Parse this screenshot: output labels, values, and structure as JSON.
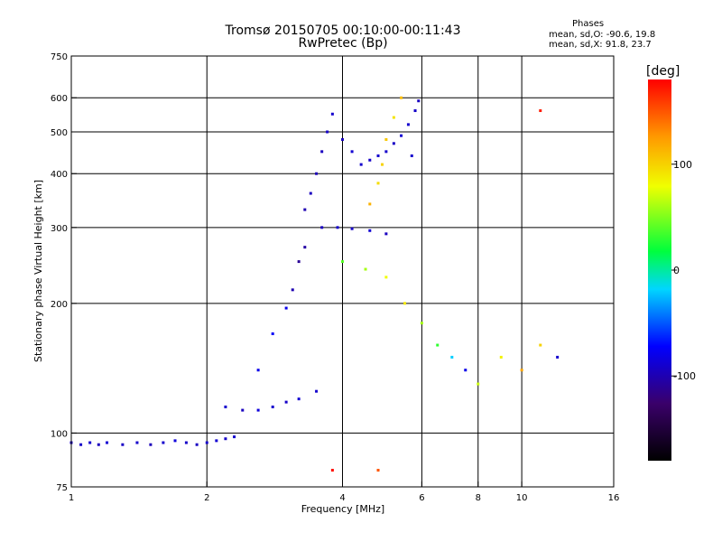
{
  "header": {
    "title_line1": "Tromsø 20150705 00:10:00-00:11:43",
    "title_line2": "RwPretec (Bp)"
  },
  "stats": {
    "heading": "Phases",
    "line_o": "mean, sd,O: -90.6, 19.8",
    "line_x": "mean, sd,X:  91.8, 23.7"
  },
  "colorbar": {
    "label": "[deg]",
    "ticks": [
      "100",
      "0",
      "-100"
    ],
    "tick_values": [
      100,
      0,
      -100
    ],
    "range": [
      -180,
      180
    ]
  },
  "chart_data": {
    "type": "scatter",
    "xlabel": "Frequency [MHz]",
    "ylabel": "Stationary phase Virtual Height [km]",
    "xscale": "log",
    "yscale": "log",
    "xlim": [
      1,
      16
    ],
    "ylim": [
      75,
      750
    ],
    "xticks": [
      1,
      2,
      4,
      6,
      8,
      10,
      16
    ],
    "xtick_labels": [
      "1",
      "2",
      "4",
      "6",
      "8",
      "10",
      "16"
    ],
    "yticks": [
      75,
      100,
      200,
      300,
      400,
      500,
      600,
      750
    ],
    "ytick_labels": [
      "75",
      "100",
      "200",
      "300",
      "400",
      "500",
      "600",
      "750"
    ],
    "grid_x": [
      2,
      4,
      6,
      8,
      10
    ],
    "grid_y": [
      100,
      200,
      300,
      400,
      500,
      600
    ],
    "color_meaning": "phase [deg]",
    "series": [
      {
        "points": [
          [
            1.0,
            95,
            -95
          ],
          [
            1.05,
            94,
            -92
          ],
          [
            1.1,
            95,
            -90
          ],
          [
            1.15,
            94,
            -96
          ],
          [
            1.2,
            95,
            -88
          ],
          [
            1.3,
            94,
            -93
          ],
          [
            1.4,
            95,
            -91
          ],
          [
            1.5,
            94,
            -97
          ],
          [
            1.6,
            95,
            -90
          ],
          [
            1.7,
            96,
            -85
          ],
          [
            1.8,
            95,
            -92
          ],
          [
            1.9,
            94,
            -94
          ],
          [
            2.0,
            95,
            -90
          ],
          [
            2.1,
            96,
            -88
          ],
          [
            2.2,
            97,
            -92
          ],
          [
            2.3,
            98,
            -90
          ],
          [
            2.2,
            115,
            -90
          ],
          [
            2.4,
            113,
            -95
          ],
          [
            2.6,
            113,
            -85
          ],
          [
            2.8,
            115,
            -90
          ],
          [
            3.0,
            118,
            -92
          ],
          [
            3.2,
            120,
            -88
          ],
          [
            3.5,
            125,
            -90
          ],
          [
            2.6,
            140,
            -80
          ],
          [
            2.8,
            170,
            -75
          ],
          [
            3.0,
            195,
            -80
          ],
          [
            3.1,
            215,
            -100
          ],
          [
            3.2,
            250,
            -110
          ],
          [
            3.3,
            270,
            -105
          ],
          [
            3.3,
            330,
            -100
          ],
          [
            3.4,
            360,
            -95
          ],
          [
            3.5,
            400,
            -98
          ],
          [
            3.6,
            450,
            -95
          ],
          [
            3.7,
            500,
            -92
          ],
          [
            3.8,
            550,
            -90
          ],
          [
            4.0,
            480,
            -95
          ],
          [
            4.2,
            450,
            -88
          ],
          [
            4.4,
            420,
            -90
          ],
          [
            4.6,
            430,
            -92
          ],
          [
            4.8,
            440,
            -90
          ],
          [
            5.0,
            450,
            -91
          ],
          [
            5.2,
            470,
            -93
          ],
          [
            5.4,
            490,
            -88
          ],
          [
            5.6,
            520,
            -90
          ],
          [
            5.8,
            560,
            -92
          ],
          [
            5.9,
            590,
            -95
          ],
          [
            5.7,
            440,
            -90
          ],
          [
            3.6,
            300,
            -95
          ],
          [
            3.9,
            300,
            -90
          ],
          [
            4.2,
            298,
            -92
          ],
          [
            4.6,
            295,
            -88
          ],
          [
            5.0,
            290,
            -95
          ],
          [
            4.0,
            250,
            40
          ],
          [
            4.5,
            240,
            60
          ],
          [
            5.0,
            230,
            80
          ],
          [
            4.8,
            380,
            95
          ],
          [
            4.9,
            420,
            100
          ],
          [
            5.0,
            480,
            105
          ],
          [
            5.2,
            540,
            92
          ],
          [
            5.4,
            600,
            110
          ],
          [
            4.6,
            340,
            115
          ],
          [
            5.5,
            200,
            90
          ],
          [
            6.0,
            180,
            60
          ],
          [
            6.5,
            160,
            30
          ],
          [
            7.0,
            150,
            -20
          ],
          [
            7.5,
            140,
            -80
          ],
          [
            8.0,
            130,
            70
          ],
          [
            9.0,
            150,
            85
          ],
          [
            10.0,
            140,
            120
          ],
          [
            11.0,
            160,
            100
          ],
          [
            12.0,
            150,
            -90
          ],
          [
            11.0,
            560,
            170
          ],
          [
            3.8,
            82,
            175
          ],
          [
            4.8,
            82,
            150
          ]
        ]
      }
    ]
  }
}
